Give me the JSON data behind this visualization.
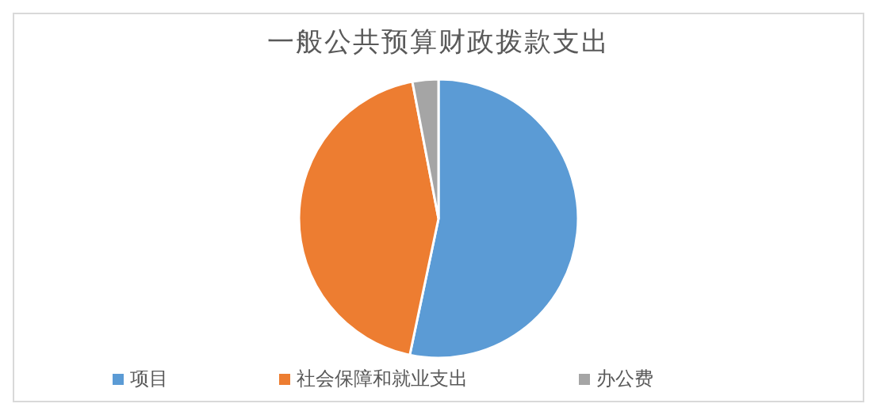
{
  "chart_data": {
    "type": "pie",
    "title": "一般公共预算财政拨款支出",
    "categories": [
      "项目",
      "社会保障和就业支出",
      "办公费"
    ],
    "values": [
      53.3,
      43.7,
      3.0
    ],
    "colors": [
      "#5b9bd5",
      "#ed7d31",
      "#a5a5a5"
    ],
    "legend": "bottom"
  }
}
